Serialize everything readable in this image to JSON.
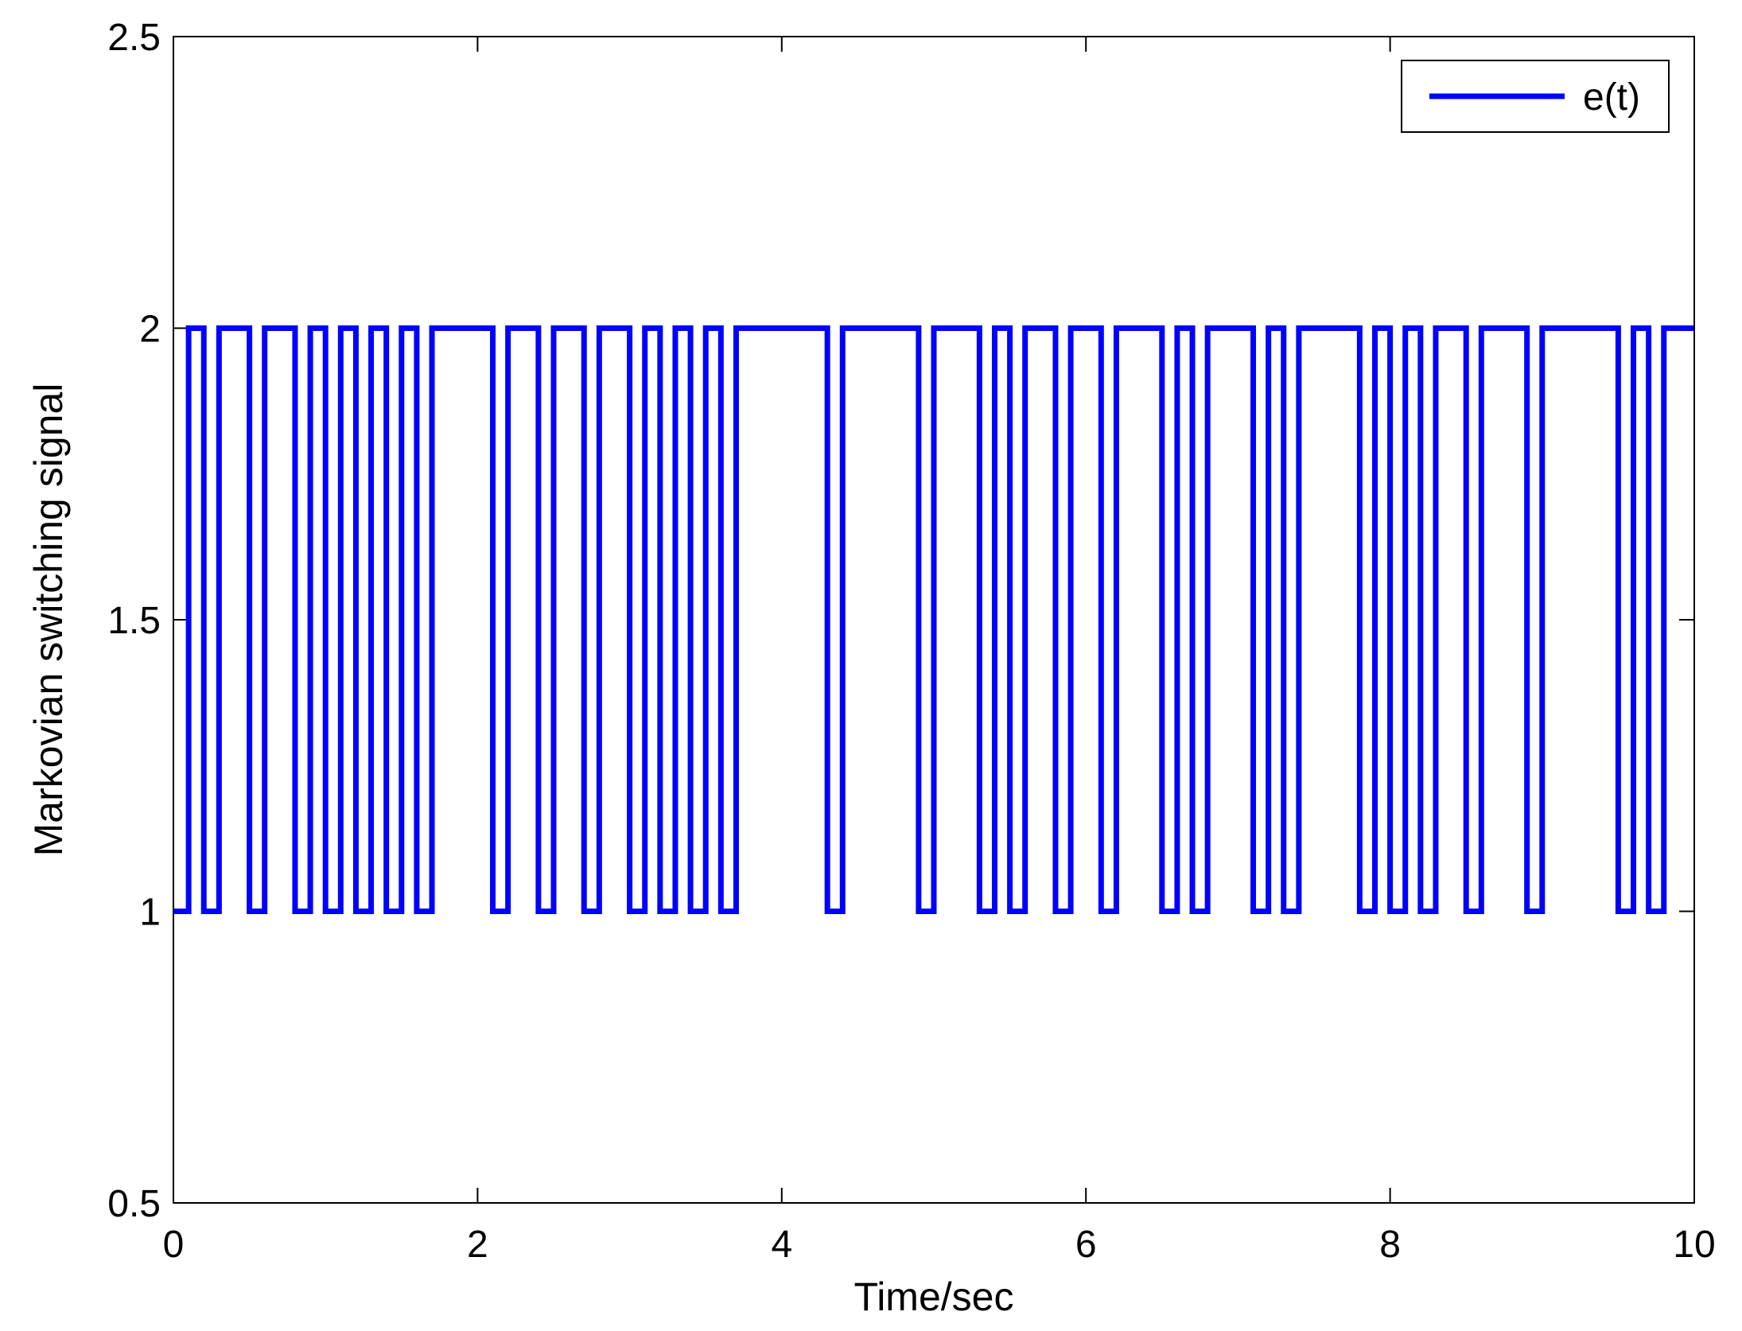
{
  "chart_data": {
    "type": "line",
    "step": true,
    "xlabel": "Time/sec",
    "ylabel": "Markovian switching signal",
    "xlim": [
      0,
      10
    ],
    "ylim": [
      0.5,
      2.5
    ],
    "xticks": [
      0,
      2,
      4,
      6,
      8,
      10
    ],
    "yticks": [
      0.5,
      1,
      1.5,
      2,
      2.5
    ],
    "xtick_labels": [
      "0",
      "2",
      "4",
      "6",
      "8",
      "10"
    ],
    "ytick_labels": [
      "0.5",
      "1",
      "1.5",
      "2",
      "2.5"
    ],
    "grid": false,
    "legend_position": "top-right",
    "series": [
      {
        "name": "e(t)",
        "color": "#0000ff",
        "x": [
          0,
          0.1,
          0.2,
          0.3,
          0.5,
          0.6,
          0.8,
          0.9,
          1.0,
          1.1,
          1.2,
          1.3,
          1.4,
          1.5,
          1.6,
          1.7,
          2.1,
          2.2,
          2.4,
          2.5,
          2.7,
          2.8,
          3.0,
          3.1,
          3.2,
          3.3,
          3.4,
          3.5,
          3.6,
          3.7,
          4.3,
          4.4,
          4.9,
          5.0,
          5.3,
          5.4,
          5.5,
          5.6,
          5.8,
          5.9,
          6.1,
          6.2,
          6.5,
          6.6,
          6.7,
          6.8,
          7.1,
          7.2,
          7.3,
          7.4,
          7.8,
          7.9,
          8.0,
          8.1,
          8.2,
          8.3,
          8.5,
          8.6,
          8.9,
          9.0,
          9.5,
          9.6,
          9.7,
          9.8,
          10.0
        ],
        "values": [
          1,
          2,
          1,
          2,
          1,
          2,
          1,
          2,
          1,
          2,
          1,
          2,
          1,
          2,
          1,
          2,
          1,
          2,
          1,
          2,
          1,
          2,
          1,
          2,
          1,
          2,
          1,
          2,
          1,
          2,
          1,
          2,
          1,
          2,
          1,
          2,
          1,
          2,
          1,
          2,
          1,
          2,
          1,
          2,
          1,
          2,
          1,
          2,
          1,
          2,
          1,
          2,
          1,
          2,
          1,
          2,
          1,
          2,
          1,
          2,
          1,
          2,
          1,
          2,
          2
        ]
      }
    ]
  }
}
